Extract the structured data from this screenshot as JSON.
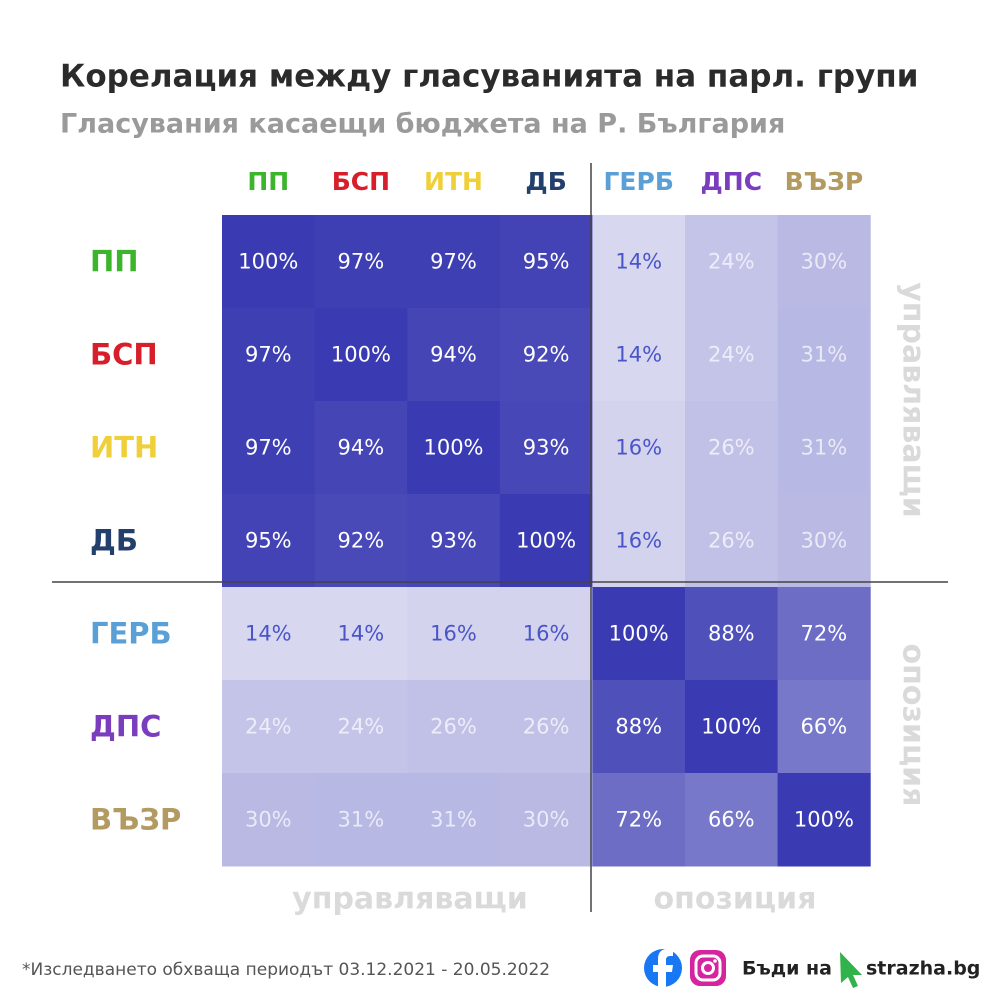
{
  "chart_data": {
    "type": "heatmap",
    "title": "Корелация между гласуванията на парл. групи",
    "subtitle": "Гласувания касаещи бюджета на Р. България",
    "categories": [
      "ПП",
      "БСП",
      "ИТН",
      "ДБ",
      "ГЕРБ",
      "ДПС",
      "ВЪЗР"
    ],
    "category_colors": [
      "#3cb52c",
      "#d61f2a",
      "#f0d03a",
      "#233f6c",
      "#5aa0d6",
      "#7a3dbd",
      "#b39a60"
    ],
    "values": [
      [
        100,
        97,
        97,
        95,
        14,
        24,
        30
      ],
      [
        97,
        100,
        94,
        92,
        14,
        24,
        31
      ],
      [
        97,
        94,
        100,
        93,
        16,
        26,
        31
      ],
      [
        95,
        92,
        93,
        100,
        16,
        26,
        30
      ],
      [
        14,
        14,
        16,
        16,
        100,
        88,
        72
      ],
      [
        24,
        24,
        26,
        26,
        88,
        100,
        66
      ],
      [
        30,
        31,
        31,
        30,
        72,
        66,
        100
      ]
    ],
    "value_labels": [
      [
        "100%",
        "97%",
        "97%",
        "95%",
        "14%",
        "24%",
        "30%"
      ],
      [
        "97%",
        "100%",
        "94%",
        "92%",
        "14%",
        "24%",
        "31%"
      ],
      [
        "97%",
        "94%",
        "100%",
        "93%",
        "16%",
        "26%",
        "31%"
      ],
      [
        "95%",
        "92%",
        "93%",
        "100%",
        "16%",
        "26%",
        "30%"
      ],
      [
        "14%",
        "14%",
        "16%",
        "16%",
        "100%",
        "88%",
        "72%"
      ],
      [
        "24%",
        "24%",
        "26%",
        "26%",
        "88%",
        "100%",
        "66%"
      ],
      [
        "30%",
        "31%",
        "31%",
        "30%",
        "72%",
        "66%",
        "100%"
      ]
    ],
    "color_scale": [
      "#f0f0fa",
      "#3a3ab2"
    ],
    "group_labels": [
      "управляващи",
      "опозиция"
    ],
    "footnote": "*Изследването обхваща периодът 03.12.2021 - 20.05.2022",
    "branding": [
      "Бъди на",
      "strazha.bg"
    ]
  }
}
